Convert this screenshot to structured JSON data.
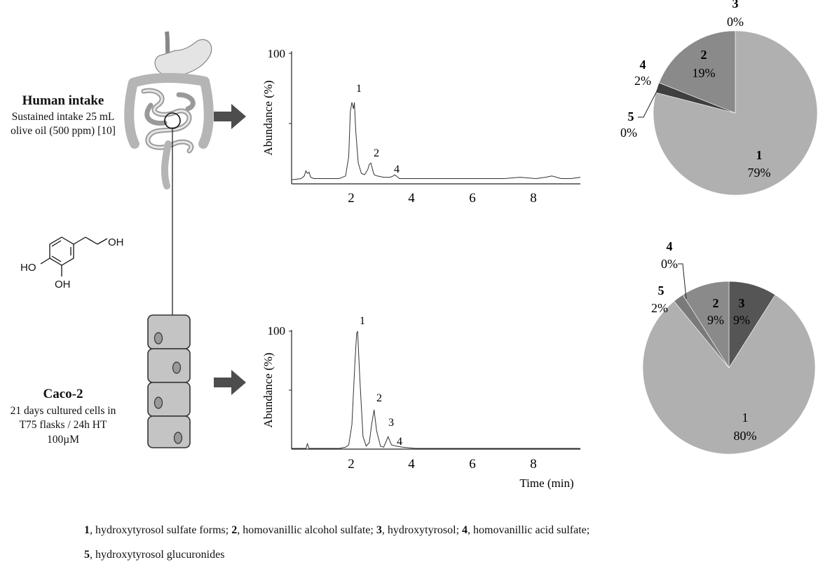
{
  "human": {
    "title": "Human intake",
    "desc_line1": "Sustained intake 25 mL",
    "desc_line2": "olive oil (500 ppm) [10]"
  },
  "caco": {
    "title": "Caco-2",
    "desc_line1": "21 days cultured cells in",
    "desc_line2": "T75 flasks / 24h HT",
    "desc_line3": "100µM"
  },
  "molecule": {
    "labels": [
      "OH",
      "HO",
      "OH"
    ]
  },
  "chromatograms": {
    "ylabel": "Abundance (%)",
    "xlabel": "Time (min)",
    "y_tick": "100",
    "x_ticks": [
      "2",
      "4",
      "6",
      "8"
    ],
    "top_peaks": [
      "1",
      "2",
      "4"
    ],
    "bottom_peaks": [
      "1",
      "2",
      "3",
      "4"
    ]
  },
  "chart_data": [
    {
      "type": "line",
      "ylabel": "Abundance (%)",
      "ylim": [
        0,
        100
      ],
      "xlim": [
        0.3,
        9.4
      ],
      "x_ticks": [
        2,
        4,
        6,
        8
      ],
      "x": [
        0.3,
        0.6,
        0.7,
        0.75,
        0.8,
        0.85,
        0.9,
        1.0,
        1.2,
        1.5,
        1.8,
        2.0,
        2.1,
        2.15,
        2.2,
        2.25,
        2.28,
        2.32,
        2.4,
        2.5,
        2.6,
        2.7,
        2.75,
        2.8,
        2.85,
        2.9,
        3.0,
        3.2,
        3.4,
        3.5,
        3.55,
        3.6,
        3.7,
        3.9,
        4.2,
        4.6,
        5.0,
        5.5,
        6.0,
        6.5,
        7.0,
        7.5,
        8.0,
        8.3,
        8.5,
        8.8,
        9.1,
        9.4
      ],
      "y": [
        2,
        3,
        5,
        9,
        7,
        8,
        4,
        3,
        3,
        3,
        3,
        5,
        20,
        55,
        62,
        57,
        62,
        40,
        15,
        7,
        6,
        10,
        14,
        15,
        10,
        6,
        5,
        4,
        4,
        5,
        6,
        5,
        3,
        3,
        3,
        3,
        3,
        3,
        3,
        3,
        3,
        4,
        3,
        4,
        5,
        3,
        3,
        4
      ],
      "peaks": [
        {
          "label": "1",
          "x": 2.2
        },
        {
          "label": "2",
          "x": 2.8
        },
        {
          "label": "4",
          "x": 3.6
        }
      ]
    },
    {
      "type": "line",
      "ylabel": "Abundance (%)",
      "xlabel": "Time (min)",
      "ylim": [
        0,
        100
      ],
      "xlim": [
        0.3,
        9.4
      ],
      "x_ticks": [
        2,
        4,
        6,
        8
      ],
      "x": [
        0.3,
        0.75,
        0.8,
        0.85,
        1.0,
        1.5,
        1.8,
        2.0,
        2.1,
        2.2,
        2.3,
        2.35,
        2.38,
        2.45,
        2.55,
        2.65,
        2.75,
        2.82,
        2.9,
        2.98,
        3.1,
        3.2,
        3.28,
        3.34,
        3.45,
        3.6,
        3.8,
        4.2,
        5.0,
        6.0,
        7.0,
        8.0,
        9.0,
        9.4
      ],
      "y": [
        0,
        0,
        4,
        0,
        0,
        0,
        0,
        1,
        3,
        20,
        75,
        98,
        100,
        60,
        10,
        2,
        5,
        20,
        33,
        15,
        2,
        1,
        6,
        10,
        3,
        2,
        1,
        0,
        0,
        0,
        0,
        0,
        0,
        0
      ],
      "peaks": [
        {
          "label": "1",
          "x": 2.38
        },
        {
          "label": "2",
          "x": 2.9
        },
        {
          "label": "3",
          "x": 3.3
        },
        {
          "label": "4",
          "x": 3.6
        }
      ]
    },
    {
      "type": "pie",
      "slices": [
        {
          "label": "1",
          "value": 79,
          "text": "79%",
          "color": "#b0b0b0"
        },
        {
          "label": "2",
          "value": 19,
          "text": "19%",
          "color": "#8a8a8a"
        },
        {
          "label": "3",
          "value": 0,
          "text": "0%",
          "color": "#555555"
        },
        {
          "label": "4",
          "value": 2,
          "text": "2%",
          "color": "#3f3f3f"
        },
        {
          "label": "5",
          "value": 0,
          "text": "0%",
          "color": "#9c9c9c"
        }
      ]
    },
    {
      "type": "pie",
      "slices": [
        {
          "label": "1",
          "value": 80,
          "text": "80%",
          "color": "#b0b0b0"
        },
        {
          "label": "2",
          "value": 9,
          "text": "9%",
          "color": "#8a8a8a"
        },
        {
          "label": "3",
          "value": 9,
          "text": "9%",
          "color": "#555555"
        },
        {
          "label": "4",
          "value": 0,
          "text": "0%",
          "color": "#3f3f3f"
        },
        {
          "label": "5",
          "value": 2,
          "text": "2%",
          "color": "#7a7a7a"
        }
      ]
    }
  ],
  "legend": {
    "items": [
      {
        "num": "1",
        "text": ", hydroxytyrosol sulfate forms; "
      },
      {
        "num": "2",
        "text": ", homovanillic alcohol sulfate; "
      },
      {
        "num": "3",
        "text": ", hydroxytyrosol; "
      },
      {
        "num": "4",
        "text": ", homovanillic acid sulfate;"
      },
      {
        "num": "5",
        "text": ", hydroxytyrosol glucuronides"
      }
    ]
  }
}
